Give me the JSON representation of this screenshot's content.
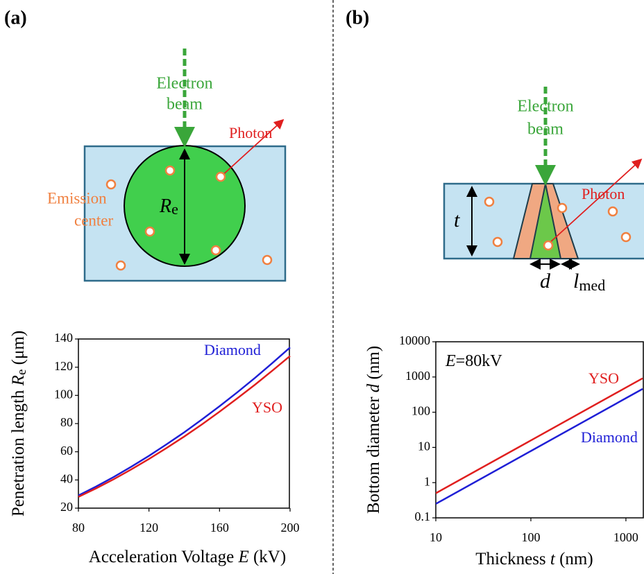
{
  "panel_labels": [
    "(a)",
    "(b)"
  ],
  "diagram_a": {
    "beam_label": [
      "Electron",
      "beam"
    ],
    "photon_label": "Photon",
    "emission_label": [
      "Emission",
      "center"
    ],
    "radius_symbol": "R",
    "radius_subscript": "e"
  },
  "diagram_b": {
    "beam_label": [
      "Electron",
      "beam"
    ],
    "photon_label": "Photon",
    "thickness_symbol": "t",
    "diameter_symbol": "d",
    "length_symbol": "l",
    "length_subscript": "med"
  },
  "chart_data": [
    {
      "type": "line",
      "xlabel": [
        "Acceleration Voltage ",
        "E",
        " (kV)"
      ],
      "ylabel": [
        "Penetration length ",
        "R",
        "e",
        " (μm)"
      ],
      "x": [
        80,
        90,
        100,
        110,
        120,
        130,
        140,
        150,
        160,
        170,
        180,
        190,
        200
      ],
      "series": [
        {
          "name": "Diamond",
          "color": "#1f1fd6",
          "values": [
            29,
            35.3,
            42.1,
            49.4,
            57.1,
            65.3,
            73.8,
            82.9,
            92.3,
            102.1,
            112.3,
            123.0,
            134.0
          ]
        },
        {
          "name": "YSO",
          "color": "#e01f1f",
          "values": [
            28,
            34.0,
            40.5,
            47.5,
            54.9,
            62.7,
            70.8,
            79.4,
            88.4,
            97.8,
            107.5,
            117.6,
            128.0
          ]
        }
      ],
      "xlim": [
        80,
        200
      ],
      "xticks": [
        80,
        120,
        160,
        200
      ],
      "ylim": [
        20,
        140
      ],
      "yticks": [
        20,
        40,
        60,
        80,
        100,
        120,
        140
      ],
      "grid": false,
      "xscale": "linear",
      "yscale": "linear"
    },
    {
      "type": "line",
      "annotation": [
        "E",
        "=80kV"
      ],
      "xlabel": [
        "Thickness ",
        "t",
        " (nm)"
      ],
      "ylabel": [
        "Bottom diameter ",
        "d",
        " (nm)"
      ],
      "x": [
        10,
        100,
        1000,
        1500
      ],
      "series": [
        {
          "name": "YSO",
          "color": "#e01f1f",
          "values": [
            0.5,
            15.8,
            500,
            918
          ]
        },
        {
          "name": "Diamond",
          "color": "#1f1fd6",
          "values": [
            0.25,
            7.9,
            250,
            459
          ]
        }
      ],
      "xlim": [
        10,
        1550
      ],
      "xticks": [
        10,
        100,
        1000
      ],
      "ylim": [
        0.1,
        10000
      ],
      "yticks": [
        0.1,
        1,
        10,
        100,
        1000,
        10000
      ],
      "grid": false,
      "xscale": "log",
      "yscale": "log"
    }
  ]
}
